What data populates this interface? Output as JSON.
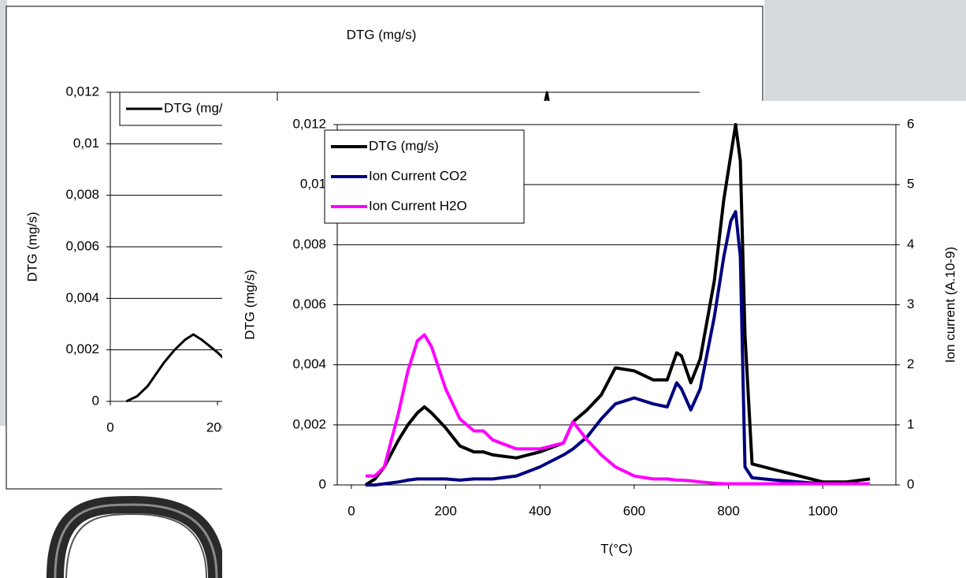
{
  "chart_data": [
    {
      "type": "line",
      "title": "DTG (mg/s)",
      "y_label": "DTG (mg/s)",
      "x": [
        30,
        50,
        70,
        100,
        120,
        140,
        155,
        170,
        200,
        230,
        260,
        280,
        300,
        350,
        400,
        450,
        470,
        500,
        530,
        560,
        600,
        640,
        670,
        690,
        700,
        720,
        740,
        770,
        790,
        805,
        815,
        825,
        835,
        850,
        900,
        950,
        1000,
        1050,
        1100
      ],
      "xlim": [
        0,
        1100
      ],
      "xticks": [
        0,
        200
      ],
      "ylim": [
        0,
        0.012
      ],
      "yticks": [
        0,
        {
          "value": 0.002,
          "label": "0,002"
        },
        {
          "value": 0.004,
          "label": "0,004"
        },
        {
          "value": 0.006,
          "label": "0,006"
        },
        {
          "value": 0.008,
          "label": "0,008"
        },
        {
          "value": 0.01,
          "label": "0,01"
        },
        {
          "value": 0.012,
          "label": "0,012"
        }
      ],
      "grid": true,
      "legend": "upper left",
      "series": [
        {
          "name": "DTG (mg/s)",
          "color": "#000000",
          "values": [
            0,
            0.0002,
            0.0006,
            0.0015,
            0.002,
            0.0024,
            0.0026,
            0.0024,
            0.0019,
            0.0013,
            0.0011,
            0.0011,
            0.001,
            0.0009,
            0.0011,
            0.0014,
            0.0021,
            0.0025,
            0.003,
            0.0039,
            0.0038,
            0.0035,
            0.0035,
            0.0044,
            0.0043,
            0.0034,
            0.0042,
            0.0068,
            0.0095,
            0.011,
            0.012,
            0.0108,
            0.005,
            0.0007,
            0.0005,
            0.0003,
            0.0001,
            0.0001,
            0.0002
          ]
        }
      ]
    },
    {
      "type": "line",
      "x_label": "T(°C)",
      "y_label": "DTG (mg/s)",
      "y2_label": "Ion current (A.10-9)",
      "x": [
        30,
        50,
        70,
        100,
        120,
        140,
        155,
        170,
        200,
        230,
        260,
        280,
        300,
        350,
        400,
        450,
        470,
        500,
        530,
        560,
        600,
        640,
        670,
        690,
        700,
        720,
        740,
        770,
        790,
        805,
        815,
        825,
        835,
        850,
        900,
        950,
        1000,
        1050,
        1100
      ],
      "xlim": [
        -30,
        1155
      ],
      "xticks": [
        0,
        200,
        400,
        600,
        800,
        1000
      ],
      "ylim": [
        0,
        0.012
      ],
      "yticks": [
        0,
        {
          "value": 0.002,
          "label": "0,002"
        },
        {
          "value": 0.004,
          "label": "0,004"
        },
        {
          "value": 0.006,
          "label": "0,006"
        },
        {
          "value": 0.008,
          "label": "0,008"
        },
        {
          "value": 0.01,
          "label": "0,01"
        },
        {
          "value": 0.012,
          "label": "0,012"
        }
      ],
      "y2lim": [
        0,
        6
      ],
      "y2ticks": [
        0,
        1,
        2,
        3,
        4,
        5,
        6
      ],
      "grid": true,
      "legend": "upper left",
      "series": [
        {
          "name": "DTG (mg/s)",
          "color": "#000000",
          "values": [
            0,
            0.0002,
            0.0006,
            0.0015,
            0.002,
            0.0024,
            0.0026,
            0.0024,
            0.0019,
            0.0013,
            0.0011,
            0.0011,
            0.001,
            0.0009,
            0.0011,
            0.0014,
            0.0021,
            0.0025,
            0.003,
            0.0039,
            0.0038,
            0.0035,
            0.0035,
            0.0044,
            0.0043,
            0.0034,
            0.0042,
            0.0068,
            0.0095,
            0.011,
            0.012,
            0.0108,
            0.005,
            0.0007,
            0.0005,
            0.0003,
            0.0001,
            0.0001,
            0.0002
          ]
        },
        {
          "name": "Ion Current CO2",
          "color": "#000080",
          "axis": "y2",
          "values": [
            0,
            0,
            0.02,
            0.05,
            0.08,
            0.1,
            0.1,
            0.1,
            0.1,
            0.08,
            0.1,
            0.1,
            0.1,
            0.15,
            0.3,
            0.5,
            0.6,
            0.8,
            1.1,
            1.35,
            1.45,
            1.35,
            1.3,
            1.7,
            1.6,
            1.25,
            1.6,
            2.8,
            3.8,
            4.4,
            4.55,
            3.8,
            0.3,
            0.12,
            0.08,
            0.05,
            0.02,
            0.02,
            0.02
          ]
        },
        {
          "name": "Ion Current H2O",
          "color": "#ff00ff",
          "axis": "y2",
          "values": [
            0.15,
            0.15,
            0.3,
            1.2,
            1.9,
            2.4,
            2.5,
            2.3,
            1.6,
            1.1,
            0.9,
            0.9,
            0.75,
            0.6,
            0.6,
            0.7,
            1.05,
            0.75,
            0.5,
            0.3,
            0.15,
            0.1,
            0.1,
            0.08,
            0.08,
            0.07,
            0.05,
            0.03,
            0.02,
            0.02,
            0.02,
            0.02,
            0.02,
            0.02,
            0.02,
            0.02,
            0.02,
            0.02,
            0.02
          ]
        }
      ]
    }
  ]
}
